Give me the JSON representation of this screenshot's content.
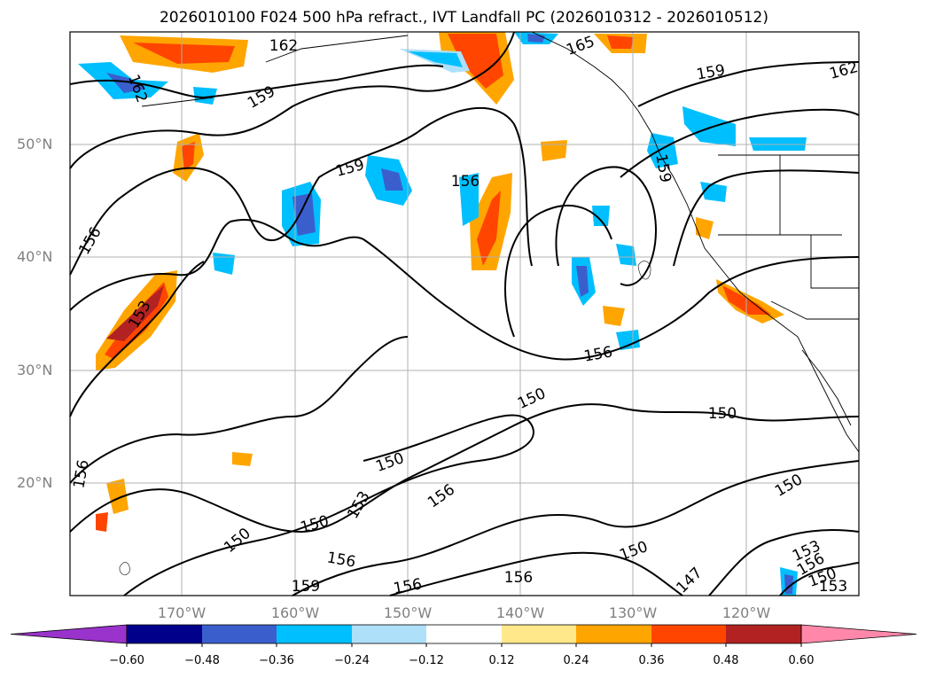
{
  "title": "2026010100 F024 500 hPa refract., IVT Landfall PC (2026010312 - 2026010512)",
  "lat_labels": [
    "50°N",
    "40°N",
    "30°N",
    "20°N"
  ],
  "lon_labels": [
    "170°W",
    "160°W",
    "150°W",
    "140°W",
    "130°W",
    "120°W"
  ],
  "colorbar": {
    "ticks": [
      "−0.60",
      "−0.48",
      "−0.36",
      "−0.24",
      "−0.12",
      "0.12",
      "0.24",
      "0.36",
      "0.48",
      "0.60"
    ],
    "colors": [
      "#9933cc",
      "#00008b",
      "#3a5fcd",
      "#00bfff",
      "#aee0fa",
      "#ffffff",
      "#ffe88a",
      "#ffa500",
      "#ff4500",
      "#b22222",
      "#ff88aa"
    ]
  },
  "contour_labels": [
    "162",
    "165",
    "162",
    "159",
    "162",
    "159",
    "159",
    "156",
    "159",
    "156",
    "153",
    "156",
    "156",
    "150",
    "150",
    "150",
    "153",
    "156",
    "150",
    "150",
    "150",
    "150",
    "147",
    "153",
    "156",
    "153",
    "159",
    "156",
    "156",
    "150",
    "156"
  ],
  "colors": {
    "land_line": "#000000",
    "grid": "#b0b0b0",
    "axis_text": "#808080"
  }
}
